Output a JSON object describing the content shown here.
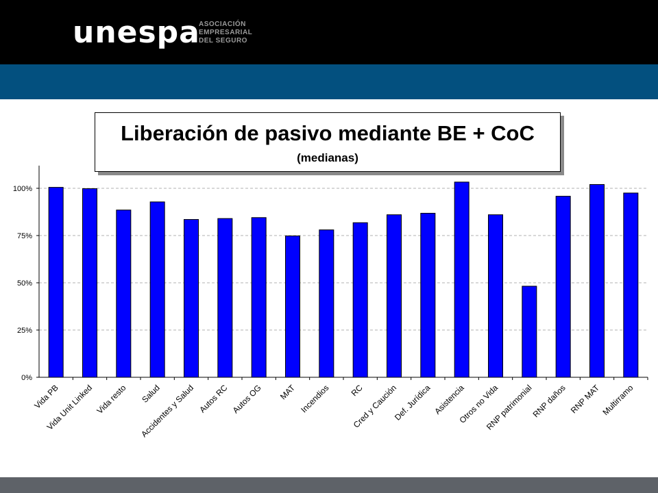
{
  "header": {
    "logo_text": "unespa",
    "logo_subtitle": [
      "ASOCIACIÓN",
      "EMPRESARIAL",
      "DEL SEGURO"
    ]
  },
  "colors": {
    "top_bar": "#000000",
    "accent_bar": "#03507f",
    "footer_bar": "#5e6268",
    "bar_fill": "#0000ff",
    "bar_stroke": "#000000",
    "grid": "#b0b0b0"
  },
  "chart_data": {
    "type": "bar",
    "title": "Liberación de pasivo mediante BE + CoC",
    "subtitle": "(medianas)",
    "xlabel": "",
    "ylabel": "",
    "ylim": [
      0,
      1.12
    ],
    "yticks": [
      0,
      0.25,
      0.5,
      0.75,
      1.0
    ],
    "ytick_labels": [
      "0%",
      "25%",
      "50%",
      "75%",
      "100%"
    ],
    "grid": "horizontal dashed",
    "legend": "none",
    "categories": [
      "Vida PB",
      "Vida Unit Linked",
      "Vida resto",
      "Salud",
      "Accidentes y Salud",
      "Autos RC",
      "Autos OG",
      "MAT",
      "Incendios",
      "RC",
      "Cred y Caución",
      "Def. Jurídica",
      "Asistencia",
      "Otros no Vida",
      "RNP patrimonial",
      "RNP daños",
      "RNP MAT",
      "Multirramo"
    ],
    "values": [
      1.005,
      0.998,
      0.885,
      0.928,
      0.835,
      0.84,
      0.845,
      0.748,
      0.78,
      0.818,
      0.86,
      0.868,
      1.033,
      0.86,
      0.482,
      0.958,
      1.02,
      0.975
    ]
  }
}
